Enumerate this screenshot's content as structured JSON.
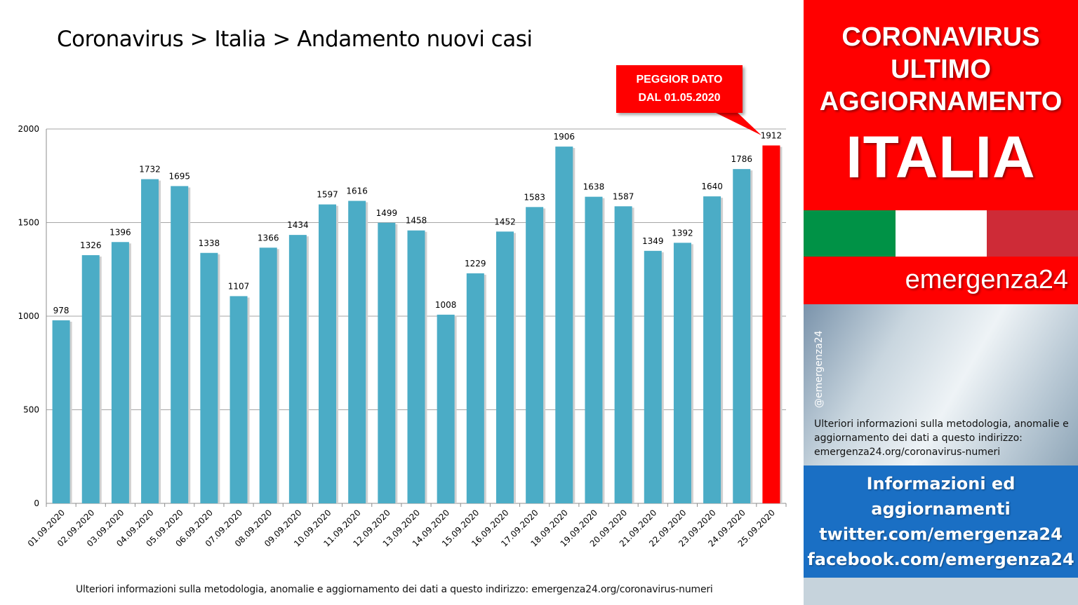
{
  "title": "Coronavirus > Italia > Andamento nuovi casi",
  "callout": {
    "line1": "PEGGIOR DATO",
    "line2": "DAL 01.05.2020"
  },
  "footer_note": "Ulteriori informazioni sulla metodologia, anomalie e aggiornamento dei dati a questo indirizzo: emergenza24.org/coronavirus-numeri",
  "sidebar": {
    "header_lines": [
      "CORONAVIRUS",
      "ULTIMO",
      "AGGIORNAMENTO"
    ],
    "country": "ITALIA",
    "flag_colors": [
      "#009246",
      "#ffffff",
      "#ce2b37"
    ],
    "brand": "emergenza24",
    "handle": "@emergenza24",
    "info_text": "Ulteriori informazioni sulla metodologia, anomalie e aggiornamento dei dati a questo indirizzo: emergenza24.org/coronavirus-numeri",
    "blue_lines": [
      "Informazioni ed",
      "aggiornamenti",
      "twitter.com/emergenza24",
      "facebook.com/emergenza24"
    ]
  },
  "colors": {
    "bar": "#4bacc6",
    "highlight_bar": "#ff0000",
    "brand_red": "#ff0000",
    "info_blue": "#1a6fc4"
  },
  "chart_data": {
    "type": "bar",
    "categories": [
      "01.09.2020",
      "02.09.2020",
      "03.09.2020",
      "04.09.2020",
      "05.09.2020",
      "06.09.2020",
      "07.09.2020",
      "08.09.2020",
      "09.09.2020",
      "10.09.2020",
      "11.09.2020",
      "12.09.2020",
      "13.09.2020",
      "14.09.2020",
      "15.09.2020",
      "16.09.2020",
      "17.09.2020",
      "18.09.2020",
      "19.09.2020",
      "20.09.2020",
      "21.09.2020",
      "22.09.2020",
      "23.09.2020",
      "24.09.2020",
      "25.09.2020"
    ],
    "values": [
      978,
      1326,
      1396,
      1732,
      1695,
      1338,
      1107,
      1366,
      1434,
      1597,
      1616,
      1499,
      1458,
      1008,
      1229,
      1452,
      1583,
      1906,
      1638,
      1587,
      1349,
      1392,
      1640,
      1786,
      1912
    ],
    "highlight_index": 24,
    "yticks": [
      "0",
      "500",
      "1000",
      "1500",
      "2000"
    ],
    "ylim": [
      0,
      2000
    ],
    "grid": true,
    "legend": "none"
  }
}
